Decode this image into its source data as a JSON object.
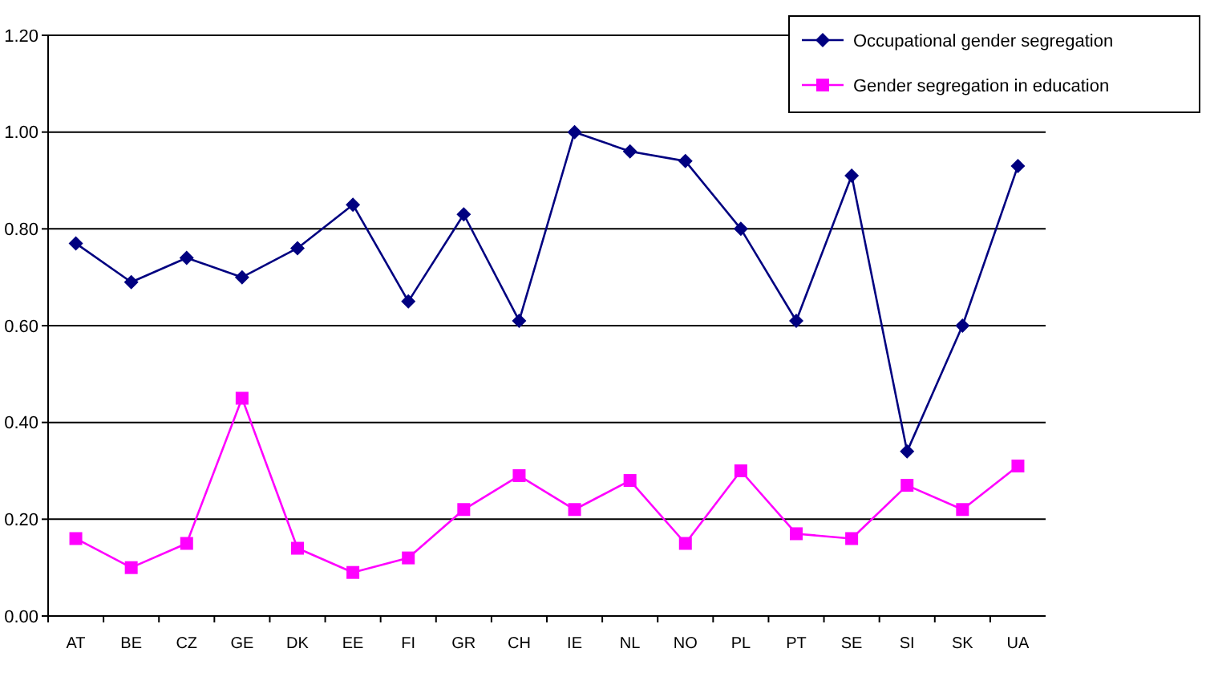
{
  "chart_data": {
    "type": "line",
    "categories": [
      "AT",
      "BE",
      "CZ",
      "GE",
      "DK",
      "EE",
      "FI",
      "GR",
      "CH",
      "IE",
      "NL",
      "NO",
      "PL",
      "PT",
      "SE",
      "SI",
      "SK",
      "UA"
    ],
    "series": [
      {
        "name": "Occupational gender segregation",
        "color": "#000080",
        "marker": "diamond",
        "values": [
          0.77,
          0.69,
          0.74,
          0.7,
          0.76,
          0.85,
          0.65,
          0.83,
          0.61,
          1.0,
          0.96,
          0.94,
          0.8,
          0.61,
          0.91,
          0.34,
          0.6,
          0.93
        ]
      },
      {
        "name": "Gender segregation in education",
        "color": "#ff00ff",
        "marker": "square",
        "values": [
          0.16,
          0.1,
          0.15,
          0.45,
          0.14,
          0.09,
          0.12,
          0.22,
          0.29,
          0.22,
          0.28,
          0.15,
          0.3,
          0.17,
          0.16,
          0.27,
          0.22,
          0.31
        ]
      }
    ],
    "ylim": [
      0,
      1.2
    ],
    "yticks": [
      {
        "value": 0,
        "label": "0.00"
      },
      {
        "value": 0.2,
        "label": "0.20"
      },
      {
        "value": 0.4,
        "label": "0.40"
      },
      {
        "value": 0.6,
        "label": "0.60"
      },
      {
        "value": 0.8,
        "label": "0.80"
      },
      {
        "value": 1,
        "label": "1.00"
      },
      {
        "value": 1.2,
        "label": "1.20"
      }
    ],
    "grid": "y",
    "legend": "top right"
  }
}
